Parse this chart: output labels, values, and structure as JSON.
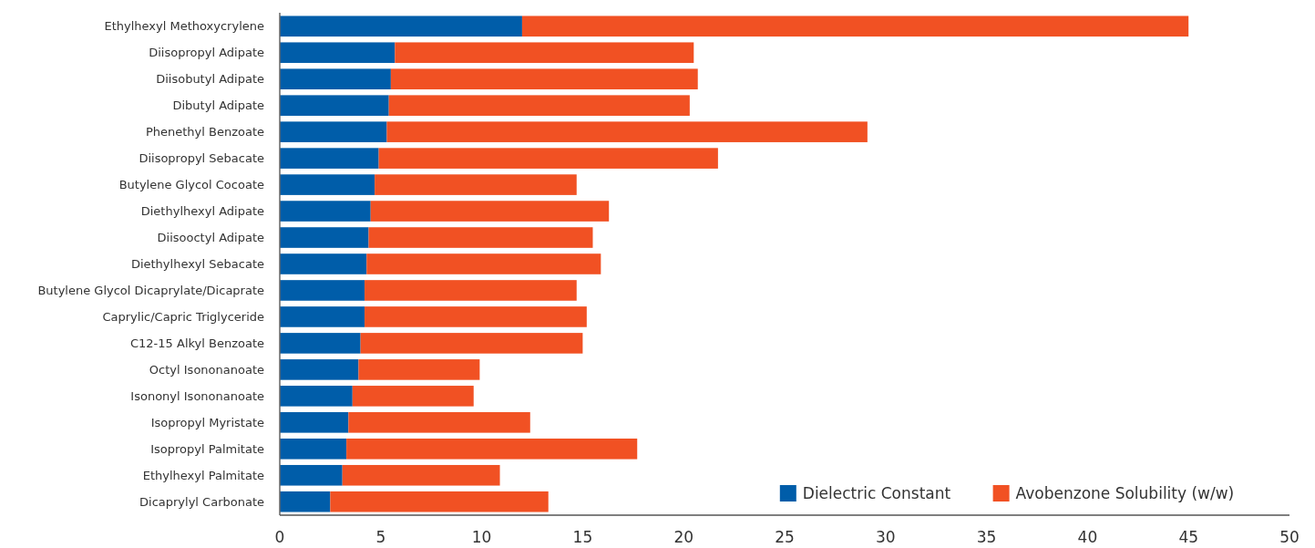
{
  "chart_data": {
    "type": "bar",
    "orientation": "horizontal",
    "stacked": true,
    "categories": [
      "Ethylhexyl Methoxycrylene",
      "Diisopropyl Adipate",
      "Diisobutyl Adipate",
      "Dibutyl Adipate",
      "Phenethyl Benzoate",
      "Diisopropyl Sebacate",
      "Butylene Glycol Cocoate",
      "Diethylhexyl Adipate",
      "Diisooctyl Adipate",
      "Diethylhexyl Sebacate",
      "Butylene Glycol Dicaprylate/Dicaprate",
      "Caprylic/Capric Triglyceride",
      "C12-15 Alkyl Benzoate",
      "Octyl Isononanoate",
      "Isononyl Isononanoate",
      "Isopropyl Myristate",
      "Isopropyl Palmitate",
      "Ethylhexyl Palmitate",
      "Dicaprylyl Carbonate"
    ],
    "series": [
      {
        "name": "Dielectric Constant",
        "color": "#005da9",
        "values": [
          12.0,
          5.7,
          5.5,
          5.4,
          5.3,
          4.9,
          4.7,
          4.5,
          4.4,
          4.3,
          4.2,
          4.2,
          4.0,
          3.9,
          3.6,
          3.4,
          3.3,
          3.1,
          2.5
        ]
      },
      {
        "name": "Avobenzone Solubility (w/w)",
        "color": "#f15123",
        "values": [
          33.0,
          14.8,
          15.2,
          14.9,
          23.8,
          16.8,
          10.0,
          11.8,
          11.1,
          11.6,
          10.5,
          11.0,
          11.0,
          6.0,
          6.0,
          9.0,
          14.4,
          7.8,
          10.8
        ]
      }
    ],
    "xlim": [
      0,
      50
    ],
    "xticks": [
      0,
      5,
      10,
      15,
      20,
      25,
      30,
      35,
      40,
      45,
      50
    ],
    "grid": false,
    "legend": "bottom right"
  }
}
